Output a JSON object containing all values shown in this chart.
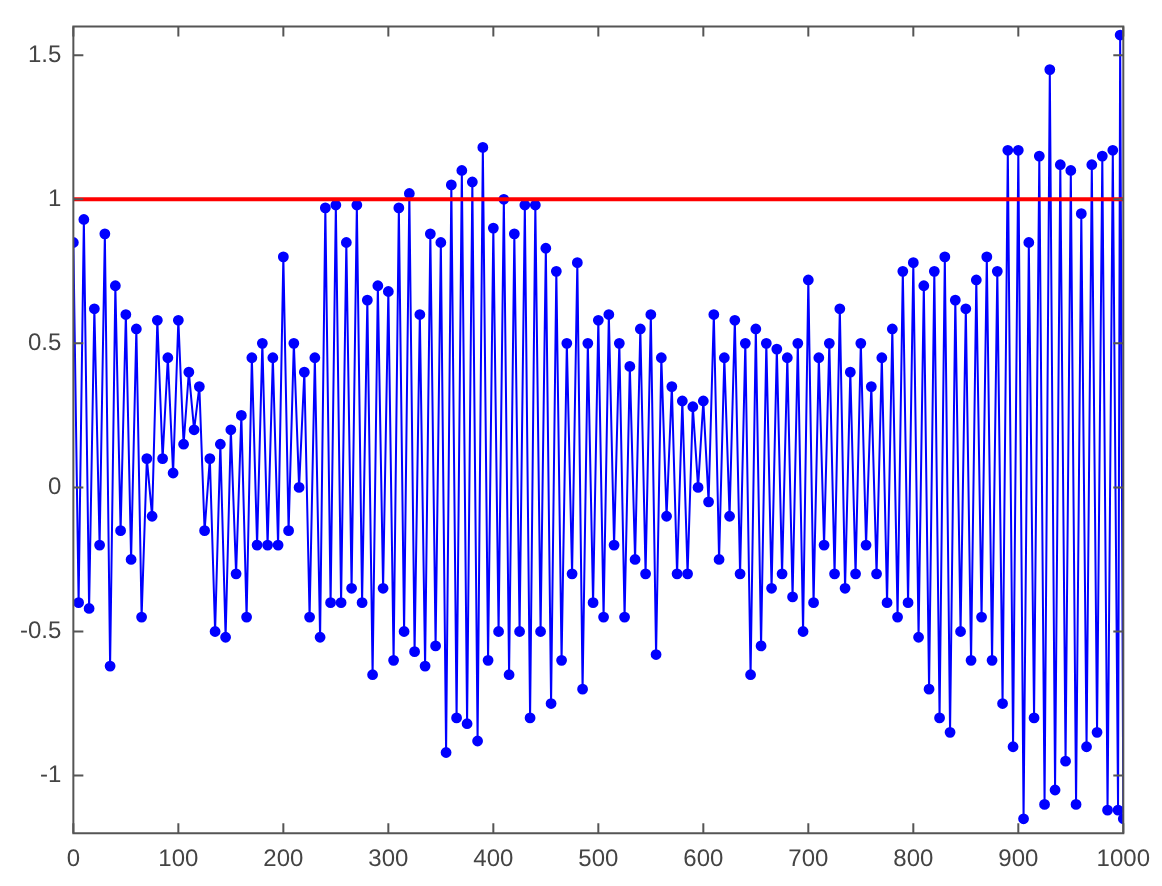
{
  "chart_data": {
    "type": "line",
    "x": [
      0,
      5,
      10,
      15,
      20,
      25,
      30,
      35,
      40,
      45,
      50,
      55,
      60,
      65,
      70,
      75,
      80,
      85,
      90,
      95,
      100,
      105,
      110,
      115,
      120,
      125,
      130,
      135,
      140,
      145,
      150,
      155,
      160,
      165,
      170,
      175,
      180,
      185,
      190,
      195,
      200,
      205,
      210,
      215,
      220,
      225,
      230,
      235,
      240,
      245,
      250,
      255,
      260,
      265,
      270,
      275,
      280,
      285,
      290,
      295,
      300,
      305,
      310,
      315,
      320,
      325,
      330,
      335,
      340,
      345,
      350,
      355,
      360,
      365,
      370,
      375,
      380,
      385,
      390,
      395,
      400,
      405,
      410,
      415,
      420,
      425,
      430,
      435,
      440,
      445,
      450,
      455,
      460,
      465,
      470,
      475,
      480,
      485,
      490,
      495,
      500,
      505,
      510,
      515,
      520,
      525,
      530,
      535,
      540,
      545,
      550,
      555,
      560,
      565,
      570,
      575,
      580,
      585,
      590,
      595,
      600,
      605,
      610,
      615,
      620,
      625,
      630,
      635,
      640,
      645,
      650,
      655,
      660,
      665,
      670,
      675,
      680,
      685,
      690,
      695,
      700,
      705,
      710,
      715,
      720,
      725,
      730,
      735,
      740,
      745,
      750,
      755,
      760,
      765,
      770,
      775,
      780,
      785,
      790,
      795,
      800,
      805,
      810,
      815,
      820,
      825,
      830,
      835,
      840,
      845,
      850,
      855,
      860,
      865,
      870,
      875,
      880,
      885,
      890,
      895,
      900,
      905,
      910,
      915,
      920,
      925,
      930,
      935,
      940,
      945,
      950,
      955,
      960,
      965,
      970,
      975,
      980,
      985,
      990,
      995,
      997,
      1000
    ],
    "series": [
      {
        "color": "#0000ff",
        "values": [
          0.85,
          -0.4,
          0.93,
          -0.42,
          0.62,
          -0.2,
          0.88,
          -0.62,
          0.7,
          -0.15,
          0.6,
          -0.25,
          0.55,
          -0.45,
          0.1,
          -0.1,
          0.58,
          0.1,
          0.45,
          0.05,
          0.58,
          0.15,
          0.4,
          0.2,
          0.35,
          -0.15,
          0.1,
          -0.5,
          0.15,
          -0.52,
          0.2,
          -0.3,
          0.25,
          -0.45,
          0.45,
          -0.2,
          0.5,
          -0.2,
          0.45,
          -0.2,
          0.8,
          -0.15,
          0.5,
          0.0,
          0.4,
          -0.45,
          0.45,
          -0.52,
          0.97,
          -0.4,
          0.98,
          -0.4,
          0.85,
          -0.35,
          0.98,
          -0.4,
          0.65,
          -0.65,
          0.7,
          -0.35,
          0.68,
          -0.6,
          0.97,
          -0.5,
          1.02,
          -0.57,
          0.6,
          -0.62,
          0.88,
          -0.55,
          0.85,
          -0.92,
          1.05,
          -0.8,
          1.1,
          -0.82,
          1.06,
          -0.88,
          1.18,
          -0.6,
          0.9,
          -0.5,
          1.0,
          -0.65,
          0.88,
          -0.5,
          0.98,
          -0.8,
          0.98,
          -0.5,
          0.83,
          -0.75,
          0.75,
          -0.6,
          0.5,
          -0.3,
          0.78,
          -0.7,
          0.5,
          -0.4,
          0.58,
          -0.45,
          0.6,
          -0.2,
          0.5,
          -0.45,
          0.42,
          -0.25,
          0.55,
          -0.3,
          0.6,
          -0.58,
          0.45,
          -0.1,
          0.35,
          -0.3,
          0.3,
          -0.3,
          0.28,
          0.0,
          0.3,
          -0.05,
          0.6,
          -0.25,
          0.45,
          -0.1,
          0.58,
          -0.3,
          0.5,
          -0.65,
          0.55,
          -0.55,
          0.5,
          -0.35,
          0.48,
          -0.3,
          0.45,
          -0.38,
          0.5,
          -0.5,
          0.72,
          -0.4,
          0.45,
          -0.2,
          0.5,
          -0.3,
          0.62,
          -0.35,
          0.4,
          -0.3,
          0.5,
          -0.2,
          0.35,
          -0.3,
          0.45,
          -0.4,
          0.55,
          -0.45,
          0.75,
          -0.4,
          0.78,
          -0.52,
          0.7,
          -0.7,
          0.75,
          -0.8,
          0.8,
          -0.85,
          0.65,
          -0.5,
          0.62,
          -0.6,
          0.72,
          -0.45,
          0.8,
          -0.6,
          0.75,
          -0.75,
          1.17,
          -0.9,
          1.17,
          -1.15,
          0.85,
          -0.8,
          1.15,
          -1.1,
          1.45,
          -1.05,
          1.12,
          -0.95,
          1.1,
          -1.1,
          0.95,
          -0.9,
          1.12,
          -0.85,
          1.15,
          -1.12,
          1.17,
          -1.12,
          1.57,
          -1.15
        ]
      }
    ],
    "xlim": [
      0,
      1000
    ],
    "xticks": [
      0,
      100,
      200,
      300,
      400,
      500,
      600,
      700,
      800,
      900,
      1000
    ],
    "ylim": [
      -1.2,
      1.6
    ],
    "yticks": [
      -1,
      -0.5,
      0,
      0.5,
      1,
      1.5
    ],
    "ref_lines": [
      {
        "axis": "y",
        "value": 1,
        "color": "#ff0000"
      }
    ],
    "marker": "circle",
    "grid": false,
    "legend": false
  }
}
